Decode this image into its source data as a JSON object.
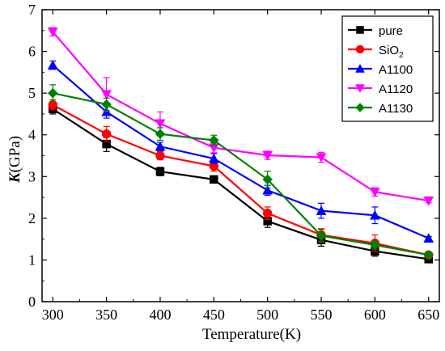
{
  "chart_data": {
    "type": "line",
    "xlabel": "Temperature(K)",
    "ylabel": {
      "italic": "K",
      "rest": "(GPa)"
    },
    "xlim": [
      290,
      660
    ],
    "ylim": [
      0,
      7
    ],
    "x": [
      300,
      350,
      400,
      450,
      500,
      550,
      600,
      650
    ],
    "x_ticks": [
      300,
      350,
      400,
      450,
      500,
      550,
      600,
      650
    ],
    "y_ticks": [
      0,
      1,
      2,
      3,
      4,
      5,
      6,
      7
    ],
    "grid": false,
    "legend_position": "top-right",
    "series": [
      {
        "name": "pure",
        "name_main": "pure",
        "name_sub": "",
        "color": "#000000",
        "marker": "square",
        "values": [
          4.62,
          3.78,
          3.12,
          2.93,
          1.93,
          1.48,
          1.21,
          1.02
        ],
        "errors": [
          0.12,
          0.18,
          0.1,
          0.08,
          0.15,
          0.15,
          0.12,
          0.05
        ]
      },
      {
        "name": "SiO2",
        "name_main": "SiO",
        "name_sub": "2",
        "color": "#ff0000",
        "marker": "circle",
        "values": [
          4.72,
          4.02,
          3.5,
          3.25,
          2.12,
          1.6,
          1.4,
          1.12
        ],
        "errors": [
          0.12,
          0.18,
          0.1,
          0.12,
          0.15,
          0.15,
          0.2,
          0.05
        ]
      },
      {
        "name": "A1100",
        "name_main": "A1100",
        "name_sub": "",
        "color": "#0000ff",
        "marker": "triangle-up",
        "values": [
          5.67,
          4.55,
          3.72,
          3.43,
          2.67,
          2.18,
          2.07,
          1.52
        ],
        "errors": [
          0.1,
          0.15,
          0.1,
          0.12,
          0.12,
          0.18,
          0.2,
          0.04
        ]
      },
      {
        "name": "A1120",
        "name_main": "A1120",
        "name_sub": "",
        "color": "#ff00ff",
        "marker": "triangle-down",
        "values": [
          6.47,
          4.97,
          4.27,
          3.69,
          3.51,
          3.46,
          2.63,
          2.42
        ],
        "errors": [
          0.1,
          0.4,
          0.28,
          0.12,
          0.1,
          0.12,
          0.1,
          0.05
        ]
      },
      {
        "name": "A1130",
        "name_main": "A1130",
        "name_sub": "",
        "color": "#008000",
        "marker": "diamond",
        "values": [
          5.0,
          4.73,
          4.02,
          3.87,
          2.93,
          1.58,
          1.36,
          1.12
        ],
        "errors": [
          0.2,
          0.15,
          0.15,
          0.12,
          0.2,
          0.15,
          0.1,
          0.05
        ]
      }
    ]
  }
}
